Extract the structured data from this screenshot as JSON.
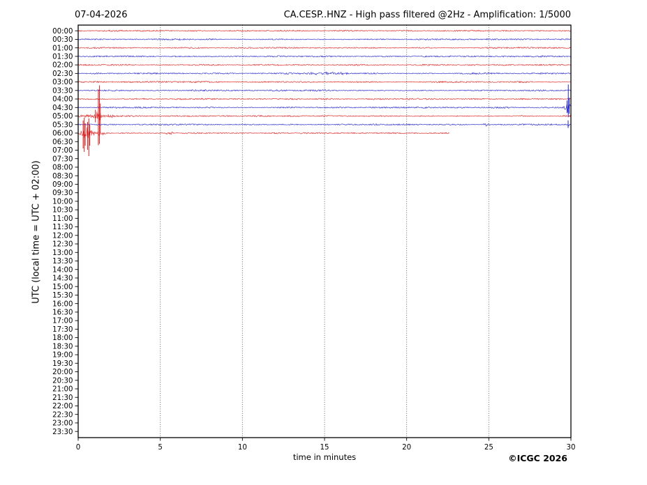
{
  "header": {
    "date": "07-04-2026",
    "title": "CA.CESP..HNZ - High pass filtered @2Hz - Amplification: 1/5000"
  },
  "footer": {
    "xlabel": "time in minutes",
    "copyright": "©ICGC 2026"
  },
  "ylabel": "UTC (local time = UTC + 02:00)",
  "colors": {
    "red": "#dd2020",
    "blue": "#2222cc",
    "spike_red": "#cc0000",
    "spike_blue": "#0000bb",
    "grid": "#555555",
    "frame": "#000000",
    "text": "#000000"
  },
  "chart_data": {
    "type": "line",
    "subtype": "helicorder-dayplot",
    "title": "CA.CESP..HNZ - High pass filtered @2Hz - Amplification: 1/5000",
    "date": "07-04-2026",
    "xlabel": "time in minutes",
    "ylabel": "UTC (local time = UTC + 02:00)",
    "x_range": [
      0,
      30
    ],
    "x_ticks": [
      0,
      5,
      10,
      15,
      20,
      25,
      30
    ],
    "grid_x": [
      5,
      10,
      15,
      20,
      25
    ],
    "minutes_per_row": 30,
    "legend": "red/blue alternating 30-minute traces; traces recorded 00:00-06:22 UTC only",
    "rows": [
      {
        "label": "00:00",
        "color": "red",
        "trace": true,
        "end": 30,
        "segs": [],
        "events": [],
        "spikes": []
      },
      {
        "label": "00:30",
        "color": "blue",
        "trace": true,
        "end": 30,
        "segs": [],
        "events": [],
        "spikes": []
      },
      {
        "label": "01:00",
        "color": "red",
        "trace": true,
        "end": 30,
        "segs": [],
        "events": [],
        "spikes": []
      },
      {
        "label": "01:30",
        "color": "blue",
        "trace": true,
        "end": 30,
        "segs": [],
        "events": [],
        "spikes": []
      },
      {
        "label": "02:00",
        "color": "red",
        "trace": true,
        "end": 30,
        "segs": [],
        "events": [],
        "spikes": []
      },
      {
        "label": "02:30",
        "color": "blue",
        "trace": true,
        "end": 30,
        "segs": [
          [
            14.0,
            16.6,
            1.5
          ]
        ],
        "events": [],
        "spikes": []
      },
      {
        "label": "03:00",
        "color": "red",
        "trace": true,
        "end": 30,
        "segs": [],
        "events": [],
        "spikes": []
      },
      {
        "label": "03:30",
        "color": "blue",
        "trace": true,
        "end": 30,
        "segs": [],
        "events": [],
        "spikes": []
      },
      {
        "label": "04:00",
        "color": "red",
        "trace": true,
        "end": 30,
        "segs": [],
        "events": [],
        "spikes": []
      },
      {
        "label": "04:30",
        "color": "blue",
        "trace": true,
        "end": 30,
        "segs": [],
        "events": [
          {
            "x": 29.82,
            "w": 0.28,
            "a": 8
          }
        ],
        "spikes": [
          {
            "x": 29.76,
            "su": 10,
            "sd": 8
          },
          {
            "x": 29.84,
            "su": 33,
            "sd": 14
          },
          {
            "x": 29.9,
            "su": 14,
            "sd": 9
          }
        ]
      },
      {
        "label": "05:00",
        "color": "red",
        "trace": true,
        "end": 30,
        "segs": [
          [
            0,
            2.3,
            2.0
          ]
        ],
        "events": [
          {
            "x": 1.27,
            "w": 0.4,
            "a": 7
          }
        ],
        "spikes": [
          {
            "x": 1.05,
            "su": 9,
            "sd": 9
          },
          {
            "x": 1.23,
            "su": 38,
            "sd": 42
          },
          {
            "x": 1.29,
            "su": 44,
            "sd": 40
          },
          {
            "x": 1.35,
            "su": 18,
            "sd": 24
          }
        ]
      },
      {
        "label": "05:30",
        "color": "blue",
        "trace": true,
        "end": 30,
        "segs": [],
        "events": [
          {
            "x": 24.8,
            "w": 0.35,
            "a": 2.2
          },
          {
            "x": 29.85,
            "w": 0.12,
            "a": 2.5
          }
        ],
        "spikes": [
          {
            "x": 29.83,
            "su": 6,
            "sd": 5
          }
        ]
      },
      {
        "label": "06:00",
        "color": "red",
        "trace": true,
        "end": 22.6,
        "segs": [
          [
            0,
            1.8,
            2.6
          ]
        ],
        "events": [
          {
            "x": 0.45,
            "w": 0.55,
            "a": 7
          },
          {
            "x": 1.27,
            "w": 0.15,
            "a": 3
          },
          {
            "x": 5.6,
            "w": 0.4,
            "a": 2.2
          }
        ],
        "spikes": [
          {
            "x": 0.3,
            "su": 18,
            "sd": 22
          },
          {
            "x": 0.37,
            "su": 22,
            "sd": 27
          },
          {
            "x": 0.43,
            "su": 14,
            "sd": 18
          },
          {
            "x": 0.58,
            "su": 16,
            "sd": 24
          },
          {
            "x": 0.65,
            "su": 21,
            "sd": 33
          },
          {
            "x": 0.71,
            "su": 12,
            "sd": 18
          }
        ]
      },
      {
        "label": "06:30",
        "color": "blue",
        "trace": false
      },
      {
        "label": "07:00",
        "color": "red",
        "trace": false
      },
      {
        "label": "07:30",
        "color": "blue",
        "trace": false
      },
      {
        "label": "08:00",
        "color": "red",
        "trace": false
      },
      {
        "label": "08:30",
        "color": "blue",
        "trace": false
      },
      {
        "label": "09:00",
        "color": "red",
        "trace": false
      },
      {
        "label": "09:30",
        "color": "blue",
        "trace": false
      },
      {
        "label": "10:00",
        "color": "red",
        "trace": false
      },
      {
        "label": "10:30",
        "color": "blue",
        "trace": false
      },
      {
        "label": "11:00",
        "color": "red",
        "trace": false
      },
      {
        "label": "11:30",
        "color": "blue",
        "trace": false
      },
      {
        "label": "12:00",
        "color": "red",
        "trace": false
      },
      {
        "label": "12:30",
        "color": "blue",
        "trace": false
      },
      {
        "label": "13:00",
        "color": "red",
        "trace": false
      },
      {
        "label": "13:30",
        "color": "blue",
        "trace": false
      },
      {
        "label": "14:00",
        "color": "red",
        "trace": false
      },
      {
        "label": "14:30",
        "color": "blue",
        "trace": false
      },
      {
        "label": "15:00",
        "color": "red",
        "trace": false
      },
      {
        "label": "15:30",
        "color": "blue",
        "trace": false
      },
      {
        "label": "16:00",
        "color": "red",
        "trace": false
      },
      {
        "label": "16:30",
        "color": "blue",
        "trace": false
      },
      {
        "label": "17:00",
        "color": "red",
        "trace": false
      },
      {
        "label": "17:30",
        "color": "blue",
        "trace": false
      },
      {
        "label": "18:00",
        "color": "red",
        "trace": false
      },
      {
        "label": "18:30",
        "color": "blue",
        "trace": false
      },
      {
        "label": "19:00",
        "color": "red",
        "trace": false
      },
      {
        "label": "19:30",
        "color": "blue",
        "trace": false
      },
      {
        "label": "20:00",
        "color": "red",
        "trace": false
      },
      {
        "label": "20:30",
        "color": "blue",
        "trace": false
      },
      {
        "label": "21:00",
        "color": "red",
        "trace": false
      },
      {
        "label": "21:30",
        "color": "blue",
        "trace": false
      },
      {
        "label": "22:00",
        "color": "red",
        "trace": false
      },
      {
        "label": "22:30",
        "color": "blue",
        "trace": false
      },
      {
        "label": "23:00",
        "color": "red",
        "trace": false
      },
      {
        "label": "23:30",
        "color": "blue",
        "trace": false
      }
    ]
  }
}
